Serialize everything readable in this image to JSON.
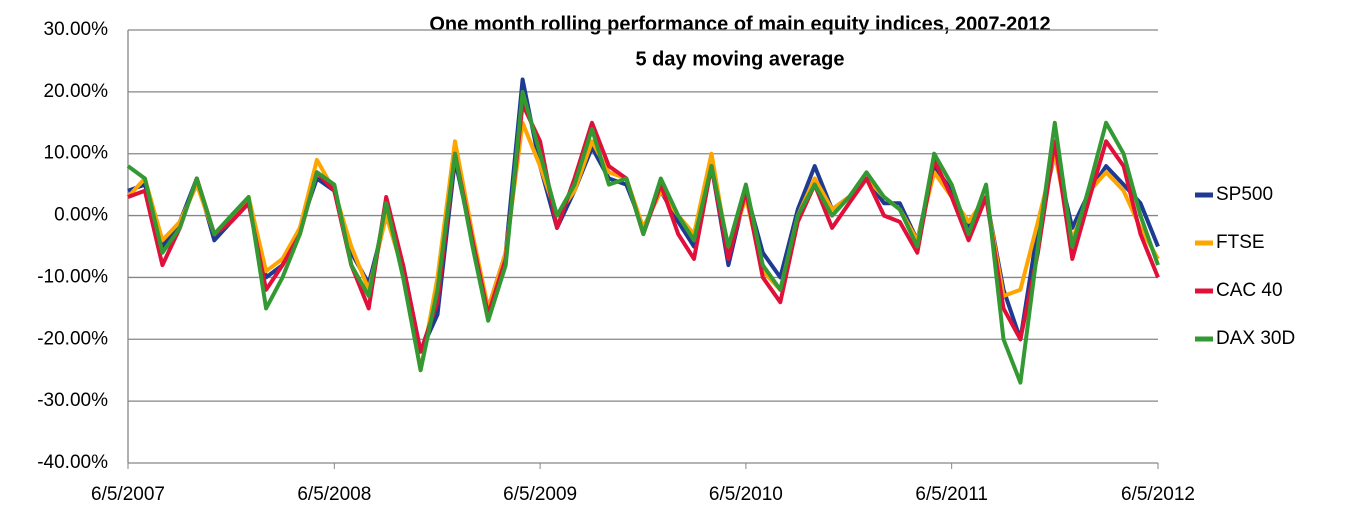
{
  "chart_data": {
    "type": "line",
    "title": "One month rolling performance of main equity indices, 2007-2012",
    "subtitle": "5 day moving average",
    "x": [
      "6/5/2007",
      "7/5/2007",
      "8/5/2007",
      "9/5/2007",
      "10/5/2007",
      "11/5/2007",
      "12/5/2007",
      "1/5/2008",
      "2/5/2008",
      "3/5/2008",
      "4/5/2008",
      "5/5/2008",
      "6/5/2008",
      "7/5/2008",
      "8/5/2008",
      "9/5/2008",
      "10/5/2008",
      "11/5/2008",
      "12/5/2008",
      "1/5/2009",
      "2/5/2009",
      "3/5/2009",
      "4/5/2009",
      "5/5/2009",
      "6/5/2009",
      "7/5/2009",
      "8/5/2009",
      "9/5/2009",
      "10/5/2009",
      "11/5/2009",
      "12/5/2009",
      "1/5/2010",
      "2/5/2010",
      "3/5/2010",
      "4/5/2010",
      "5/5/2010",
      "6/5/2010",
      "7/5/2010",
      "8/5/2010",
      "9/5/2010",
      "10/5/2010",
      "11/5/2010",
      "12/5/2010",
      "1/5/2011",
      "2/5/2011",
      "3/5/2011",
      "4/5/2011",
      "5/5/2011",
      "6/5/2011",
      "7/5/2011",
      "8/5/2011",
      "9/5/2011",
      "10/5/2011",
      "11/5/2011",
      "12/5/2011",
      "1/5/2012",
      "2/5/2012",
      "3/5/2012",
      "4/5/2012",
      "5/5/2012",
      "6/5/2012"
    ],
    "series": [
      {
        "name": "SP500",
        "color": "#1f3a93",
        "values": [
          4,
          5,
          -5,
          -1,
          6,
          -4,
          -1,
          2,
          -10,
          -8,
          -2,
          6,
          4,
          -6,
          -11,
          0,
          -8,
          -22,
          -16,
          9,
          -4,
          -15,
          -6,
          22,
          8,
          -2,
          4,
          11,
          6,
          5,
          -2,
          4,
          -1,
          -5,
          8,
          -8,
          4,
          -6,
          -10,
          1,
          8,
          1,
          3,
          6,
          2,
          2,
          -4,
          8,
          4,
          -2,
          3,
          -12,
          -20,
          -2,
          10,
          -2,
          4,
          8,
          5,
          2,
          -5
        ]
      },
      {
        "name": "FTSE",
        "color": "#ffa500",
        "values": [
          3,
          6,
          -4,
          -1,
          5,
          -3,
          -1,
          3,
          -9,
          -7,
          -2,
          9,
          4,
          -5,
          -12,
          0,
          -9,
          -25,
          -10,
          12,
          -3,
          -15,
          -6,
          15,
          8,
          0,
          4,
          12,
          7,
          6,
          -2,
          4,
          0,
          -3,
          10,
          -6,
          3,
          -9,
          -12,
          0,
          6,
          1,
          3,
          6,
          3,
          1,
          -4,
          7,
          3,
          -1,
          3,
          -13,
          -12,
          -1,
          10,
          -4,
          4,
          7,
          4,
          -2,
          -7
        ]
      },
      {
        "name": "CAC 40",
        "color": "#e0103a",
        "values": [
          3,
          4,
          -8,
          -2,
          6,
          -3,
          -1,
          2,
          -12,
          -8,
          -3,
          7,
          4,
          -8,
          -15,
          3,
          -8,
          -22,
          -14,
          10,
          -4,
          -16,
          -7,
          18,
          12,
          -2,
          6,
          15,
          8,
          6,
          -3,
          5,
          -3,
          -7,
          8,
          -7,
          4,
          -10,
          -14,
          -1,
          5,
          -2,
          2,
          6,
          0,
          -1,
          -6,
          9,
          3,
          -4,
          3,
          -15,
          -20,
          -6,
          12,
          -7,
          3,
          12,
          8,
          -3,
          -10
        ]
      },
      {
        "name": "DAX 30D",
        "color": "#339933",
        "values": [
          8,
          6,
          -6,
          -2,
          6,
          -3,
          0,
          3,
          -15,
          -10,
          -3,
          7,
          5,
          -8,
          -13,
          2,
          -10,
          -25,
          -12,
          10,
          -5,
          -17,
          -8,
          20,
          10,
          0,
          5,
          14,
          5,
          6,
          -3,
          6,
          0,
          -4,
          8,
          -5,
          5,
          -8,
          -12,
          0,
          5,
          0,
          3,
          7,
          3,
          1,
          -5,
          10,
          5,
          -3,
          5,
          -20,
          -27,
          -5,
          15,
          -5,
          5,
          15,
          10,
          0,
          -8
        ]
      }
    ],
    "xlim": [
      "6/5/2007",
      "6/5/2012"
    ],
    "xticks": [
      "6/5/2007",
      "6/5/2008",
      "6/5/2009",
      "6/5/2010",
      "6/5/2011",
      "6/5/2012"
    ],
    "ylim": [
      -40,
      30
    ],
    "yticks": [
      {
        "value": -40,
        "label": "-40.00%"
      },
      {
        "value": -30,
        "label": "-30.00%"
      },
      {
        "value": -20,
        "label": "-20.00%"
      },
      {
        "value": -10,
        "label": "-10.00%"
      },
      {
        "value": 0,
        "label": "0.00%"
      },
      {
        "value": 10,
        "label": "10.00%"
      },
      {
        "value": 20,
        "label": "20.00%"
      },
      {
        "value": 30,
        "label": "30.00%"
      }
    ],
    "grid": true,
    "legend": "right"
  }
}
